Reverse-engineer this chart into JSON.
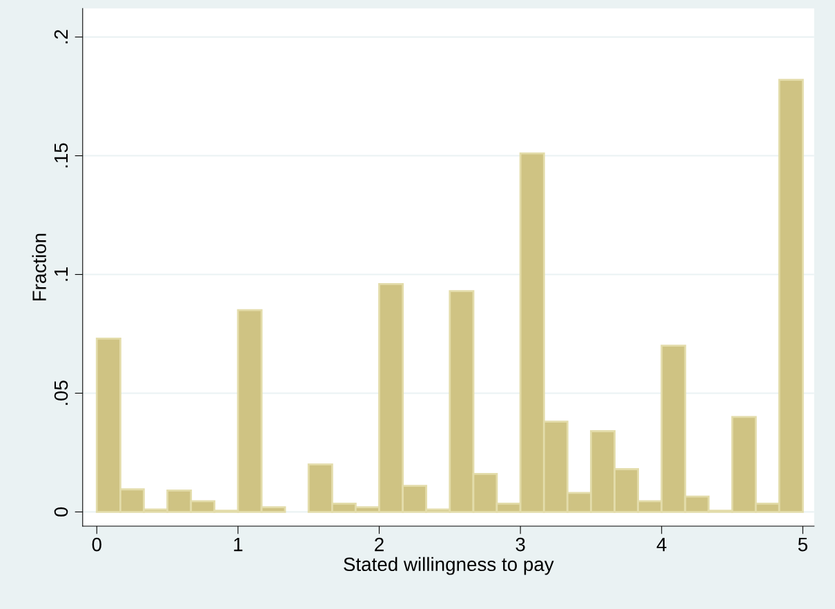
{
  "chart_data": {
    "type": "histogram",
    "xlabel": "Stated willingness to pay",
    "ylabel": "Fraction",
    "bins": [
      0,
      0.167,
      0.333,
      0.5,
      0.667,
      0.833,
      1,
      1.167,
      1.333,
      1.5,
      1.667,
      1.833,
      2,
      2.167,
      2.333,
      2.5,
      2.667,
      2.833,
      3,
      3.167,
      3.333,
      3.5,
      3.667,
      3.833,
      4,
      4.167,
      4.333,
      4.5,
      4.667,
      4.833,
      5
    ],
    "values": [
      0.073,
      0.0095,
      0.001,
      0.009,
      0.0045,
      0.0005,
      0.085,
      0.002,
      0,
      0.02,
      0.0035,
      0.002,
      0.096,
      0.011,
      0.001,
      0.093,
      0.016,
      0.0035,
      0.151,
      0.038,
      0.008,
      0.034,
      0.018,
      0.0045,
      0.07,
      0.0065,
      0.0005,
      0.04,
      0.0035,
      0.182
    ],
    "color": "#cfc383",
    "xlim": [
      -0.1,
      5.08
    ],
    "ylim": [
      -0.006,
      0.212
    ],
    "xticks": [
      0,
      1,
      2,
      3,
      4,
      5
    ],
    "yticks": [
      {
        "value": 0,
        "label": "0"
      },
      {
        "value": 0.05,
        "label": ".05"
      },
      {
        "value": 0.1,
        "label": ".1"
      },
      {
        "value": 0.15,
        "label": ".15"
      },
      {
        "value": 0.2,
        "label": ".2"
      }
    ],
    "grid": "y",
    "legend": false
  }
}
